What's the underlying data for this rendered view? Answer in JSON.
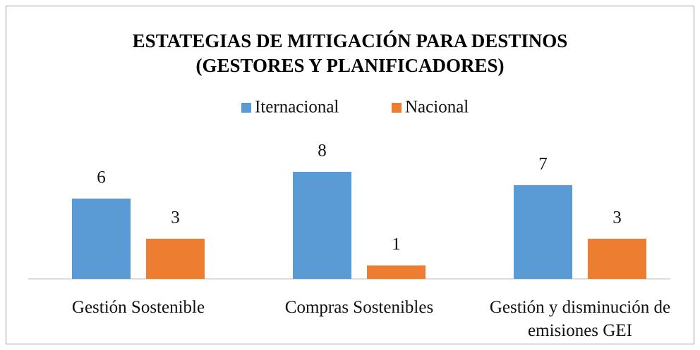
{
  "chart_data": {
    "type": "bar",
    "title": [
      "ESTATEGIAS DE MITIGACIÓN PARA DESTINOS",
      "(GESTORES Y PLANIFICADORES)"
    ],
    "categories": [
      "Gestión Sostenible",
      "Compras Sostenibles",
      "Gestión y disminución de emisiones GEI"
    ],
    "series": [
      {
        "name": "Iternacional",
        "color": "#5b9bd5",
        "values": [
          6,
          8,
          7
        ]
      },
      {
        "name": "Nacional",
        "color": "#ed7d31",
        "values": [
          3,
          1,
          3
        ]
      }
    ],
    "legend": "top"
  }
}
